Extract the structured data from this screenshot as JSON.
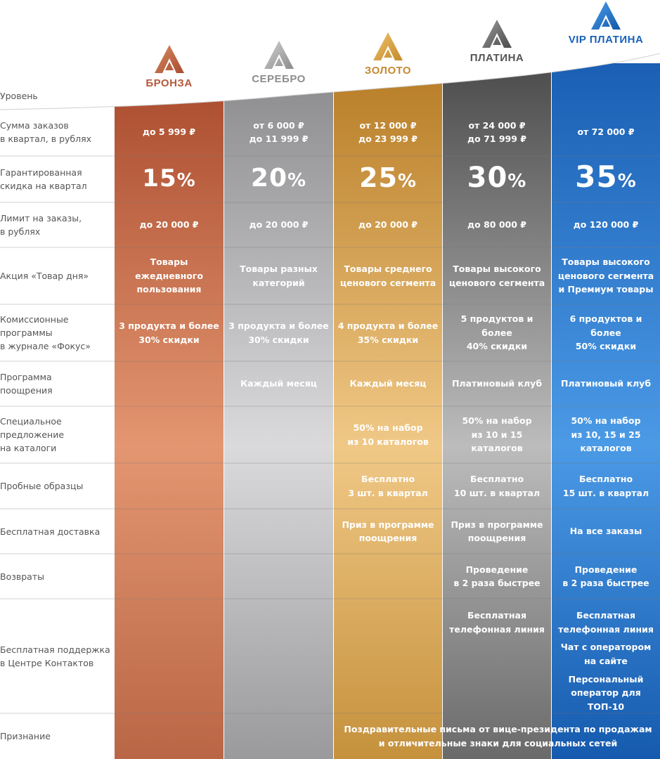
{
  "tiers": [
    {
      "name": "БРОНЗА",
      "color": "#b5583a",
      "light": "#e0906a"
    },
    {
      "name": "СЕРЕБРО",
      "color": "#8d8d8f",
      "light": "#d6d6d8"
    },
    {
      "name": "ЗОЛОТО",
      "color": "#c48a33",
      "light": "#ecc37a"
    },
    {
      "name": "ПЛАТИНА",
      "color": "#555555",
      "light": "#b6b6b6"
    },
    {
      "name": "VIP ПЛАТИНА",
      "color": "#1a62b8",
      "light": "#3f8ee0"
    }
  ],
  "rows": [
    {
      "label": "Уровень"
    },
    {
      "label": "Сумма заказов\nв квартал, в рублях",
      "cells": [
        [
          "до 5 999 ₽"
        ],
        [
          "от 6 000 ₽",
          "до 11 999 ₽"
        ],
        [
          "от 12 000 ₽",
          "до 23 999 ₽"
        ],
        [
          "от 24 000 ₽",
          "до 71 999 ₽"
        ],
        [
          "от 72 000 ₽"
        ]
      ]
    },
    {
      "label": "Гарантированная\nскидка на квартал",
      "discounts": [
        {
          "num": "15",
          "pct": "%"
        },
        {
          "num": "20",
          "pct": "%"
        },
        {
          "num": "25",
          "pct": "%"
        },
        {
          "num": "30",
          "pct": "%"
        },
        {
          "num": "35",
          "pct": "%"
        }
      ]
    },
    {
      "label": "Лимит на заказы,\nв рублях",
      "cells": [
        [
          "до 20 000 ₽"
        ],
        [
          "до 20 000 ₽"
        ],
        [
          "до 20 000 ₽"
        ],
        [
          "до 80 000 ₽"
        ],
        [
          "до 120 000 ₽"
        ]
      ]
    },
    {
      "label": "Акция «Товар дня»",
      "cells": [
        [
          "Товары",
          "ежедневного",
          "пользования"
        ],
        [
          "Товары разных",
          "категорий"
        ],
        [
          "Товары среднего",
          "ценового сегмента"
        ],
        [
          "Товары высокого",
          "ценового сегмента"
        ],
        [
          "Товары высокого",
          "ценового сегмента",
          "и Премиум товары"
        ]
      ]
    },
    {
      "label": "Комиссионные\nпрограммы\nв журнале «Фокус»",
      "cells": [
        [
          "3 продукта и более",
          "30% скидки"
        ],
        [
          "3 продукта и более",
          "30% скидки"
        ],
        [
          "4 продукта и более",
          "35% скидки"
        ],
        [
          "5 продуктов и более",
          "40% скидки"
        ],
        [
          "6 продуктов и более",
          "50% скидки"
        ]
      ]
    },
    {
      "label": "Программа\nпоощрения",
      "cells": [
        [],
        [
          "Каждый месяц"
        ],
        [
          "Каждый месяц"
        ],
        [
          "Платиновый клуб"
        ],
        [
          "Платиновый клуб"
        ]
      ]
    },
    {
      "label": "Специальное\nпредложение\nна каталоги",
      "cells": [
        [],
        [],
        [
          "50% на набор",
          "из 10 каталогов"
        ],
        [
          "50% на набор",
          "из 10 и 15 каталогов"
        ],
        [
          "50% на набор",
          "из 10, 15 и 25",
          "каталогов"
        ]
      ]
    },
    {
      "label": "Пробные образцы",
      "cells": [
        [],
        [],
        [
          "Бесплатно",
          "3 шт. в квартал"
        ],
        [
          "Бесплатно",
          "10 шт. в квартал"
        ],
        [
          "Бесплатно",
          "15 шт. в квартал"
        ]
      ]
    },
    {
      "label": "Бесплатная доставка",
      "cells": [
        [],
        [],
        [
          "Приз в программе",
          "поощрения"
        ],
        [
          "Приз в программе",
          "поощрения"
        ],
        [
          "На все заказы"
        ]
      ]
    },
    {
      "label": "Возвраты",
      "cells": [
        [],
        [],
        [],
        [
          "Проведение",
          "в 2 раза быстрее"
        ],
        [
          "Проведение",
          "в 2 раза быстрее"
        ]
      ]
    },
    {
      "label": "Бесплатная поддержка\nв Центре Контактов",
      "cells": [
        [],
        [],
        [],
        [
          "Бесплатная",
          "телефонная линия"
        ],
        [
          "Бесплатная",
          "телефонная линия",
          "",
          "Чат с оператором",
          "на сайте",
          "",
          "Персональный",
          "оператор для",
          "ТОП-10"
        ]
      ]
    },
    {
      "label": "Признание",
      "wide": [
        "Поздравительные письма от вице-президента по продажам",
        "и отличительные знаки для социальных сетей"
      ]
    }
  ]
}
